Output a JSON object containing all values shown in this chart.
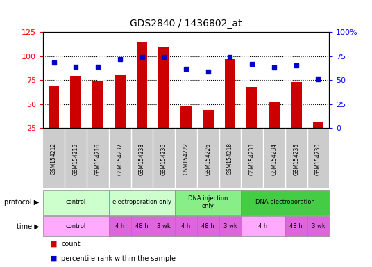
{
  "title": "GDS2840 / 1436802_at",
  "samples": [
    "GSM154212",
    "GSM154215",
    "GSM154216",
    "GSM154237",
    "GSM154238",
    "GSM154236",
    "GSM154222",
    "GSM154226",
    "GSM154218",
    "GSM154233",
    "GSM154234",
    "GSM154235",
    "GSM154230"
  ],
  "counts": [
    69,
    79,
    74,
    80,
    115,
    110,
    48,
    44,
    97,
    68,
    53,
    73,
    32
  ],
  "percentiles": [
    68,
    64,
    64,
    72,
    74,
    74,
    62,
    59,
    74,
    67,
    63,
    65,
    51
  ],
  "bar_color": "#cc0000",
  "dot_color": "#0000cc",
  "ylim_left": [
    25,
    125
  ],
  "ylim_right": [
    0,
    100
  ],
  "yticks_left": [
    25,
    50,
    75,
    100,
    125
  ],
  "yticks_right": [
    0,
    25,
    50,
    75,
    100
  ],
  "ytick_labels_right": [
    "0",
    "25",
    "50",
    "75",
    "100%"
  ],
  "grid_lines": [
    50,
    75,
    100
  ],
  "protocol_groups": [
    {
      "label": "control",
      "start": 0,
      "end": 3,
      "color": "#ccffcc"
    },
    {
      "label": "electroporation only",
      "start": 3,
      "end": 6,
      "color": "#ccffcc"
    },
    {
      "label": "DNA injection\nonly",
      "start": 6,
      "end": 9,
      "color": "#88ee88"
    },
    {
      "label": "DNA electroporation",
      "start": 9,
      "end": 13,
      "color": "#44cc44"
    }
  ],
  "time_groups": [
    {
      "label": "control",
      "start": 0,
      "end": 3,
      "color": "#ffaaff"
    },
    {
      "label": "4 h",
      "start": 3,
      "end": 4,
      "color": "#dd66dd"
    },
    {
      "label": "48 h",
      "start": 4,
      "end": 5,
      "color": "#dd66dd"
    },
    {
      "label": "3 wk",
      "start": 5,
      "end": 6,
      "color": "#dd66dd"
    },
    {
      "label": "4 h",
      "start": 6,
      "end": 7,
      "color": "#dd66dd"
    },
    {
      "label": "48 h",
      "start": 7,
      "end": 8,
      "color": "#dd66dd"
    },
    {
      "label": "3 wk",
      "start": 8,
      "end": 9,
      "color": "#dd66dd"
    },
    {
      "label": "4 h",
      "start": 9,
      "end": 11,
      "color": "#ffaaff"
    },
    {
      "label": "48 h",
      "start": 11,
      "end": 12,
      "color": "#dd66dd"
    },
    {
      "label": "3 wk",
      "start": 12,
      "end": 13,
      "color": "#dd66dd"
    }
  ],
  "legend_count_color": "#cc0000",
  "legend_dot_color": "#0000cc",
  "sample_bg_color": "#cccccc",
  "border_color": "#888888"
}
